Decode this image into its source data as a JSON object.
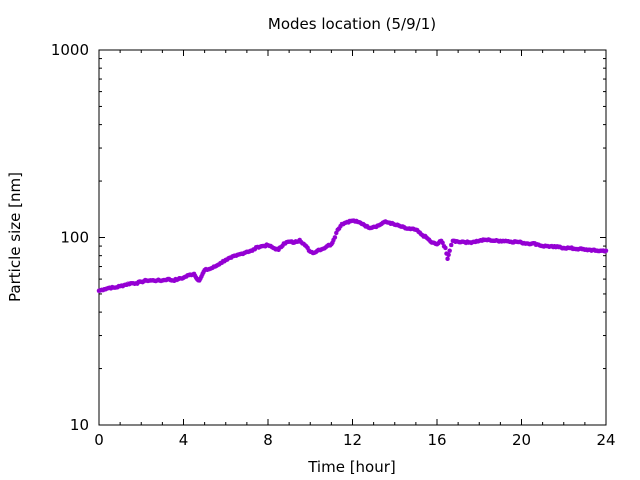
{
  "chart_data": {
    "type": "scatter",
    "title": "Modes location (5/9/1)",
    "xlabel": "Time [hour]",
    "ylabel": "Particle size [nm]",
    "xlim": [
      0,
      24
    ],
    "ylim": [
      10,
      1000
    ],
    "yscale": "log",
    "x_ticks": [
      0,
      4,
      8,
      12,
      16,
      20,
      24
    ],
    "x_tick_labels": [
      "0",
      "4",
      "8",
      "12",
      "16",
      "20",
      "24"
    ],
    "y_ticks": [
      10,
      100,
      1000
    ],
    "y_tick_labels": [
      "10",
      "100",
      "1000"
    ],
    "grid": false,
    "legend": "none",
    "marker_color": "#9400d3",
    "series": [
      {
        "x": [
          0.0,
          0.25,
          0.5,
          0.75,
          1.0,
          1.25,
          1.5,
          1.75,
          2.0,
          2.25,
          2.5,
          2.75,
          3.0,
          3.25,
          3.5,
          3.75,
          4.0,
          4.25,
          4.5,
          4.6,
          4.75,
          4.85,
          5.0,
          5.25,
          5.5,
          5.75,
          6.0,
          6.25,
          6.5,
          6.75,
          7.0,
          7.25,
          7.5,
          7.75,
          8.0,
          8.25,
          8.5,
          8.75,
          9.0,
          9.25,
          9.5,
          9.75,
          10.0,
          10.2,
          10.4,
          10.6,
          10.8,
          11.0,
          11.1,
          11.3,
          11.5,
          11.75,
          12.0,
          12.25,
          12.5,
          12.75,
          13.0,
          13.25,
          13.5,
          13.75,
          14.0,
          14.25,
          14.5,
          14.75,
          15.0,
          15.25,
          15.5,
          15.75,
          16.0,
          16.2,
          16.4,
          16.5,
          16.6,
          16.75,
          17.0,
          17.25,
          17.5,
          17.75,
          18.0,
          18.25,
          18.5,
          18.75,
          19.0,
          19.25,
          19.5,
          19.75,
          20.0,
          20.25,
          20.5,
          20.75,
          21.0,
          21.25,
          21.5,
          21.75,
          22.0,
          22.25,
          22.5,
          22.75,
          23.0,
          23.25,
          23.5,
          23.75,
          24.0
        ],
        "y": [
          52,
          53,
          54,
          54,
          55,
          56,
          57,
          57,
          58,
          59,
          59,
          59,
          59,
          60,
          59,
          60,
          61,
          63,
          64,
          61,
          59,
          62,
          67,
          68,
          70,
          73,
          76,
          78,
          80,
          82,
          84,
          85,
          89,
          90,
          91,
          88,
          86,
          93,
          95,
          94,
          97,
          91,
          84,
          83,
          86,
          87,
          90,
          92,
          97,
          110,
          118,
          121,
          123,
          121,
          118,
          113,
          114,
          116,
          121,
          120,
          117,
          115,
          112,
          111,
          110,
          104,
          100,
          94,
          92,
          96,
          88,
          77,
          85,
          96,
          95,
          95,
          94,
          95,
          96,
          97,
          97,
          96,
          96,
          96,
          95,
          95,
          94,
          93,
          93,
          92,
          90,
          90,
          89,
          89,
          88,
          88,
          87,
          87,
          86,
          86,
          85,
          85,
          85
        ]
      }
    ]
  }
}
